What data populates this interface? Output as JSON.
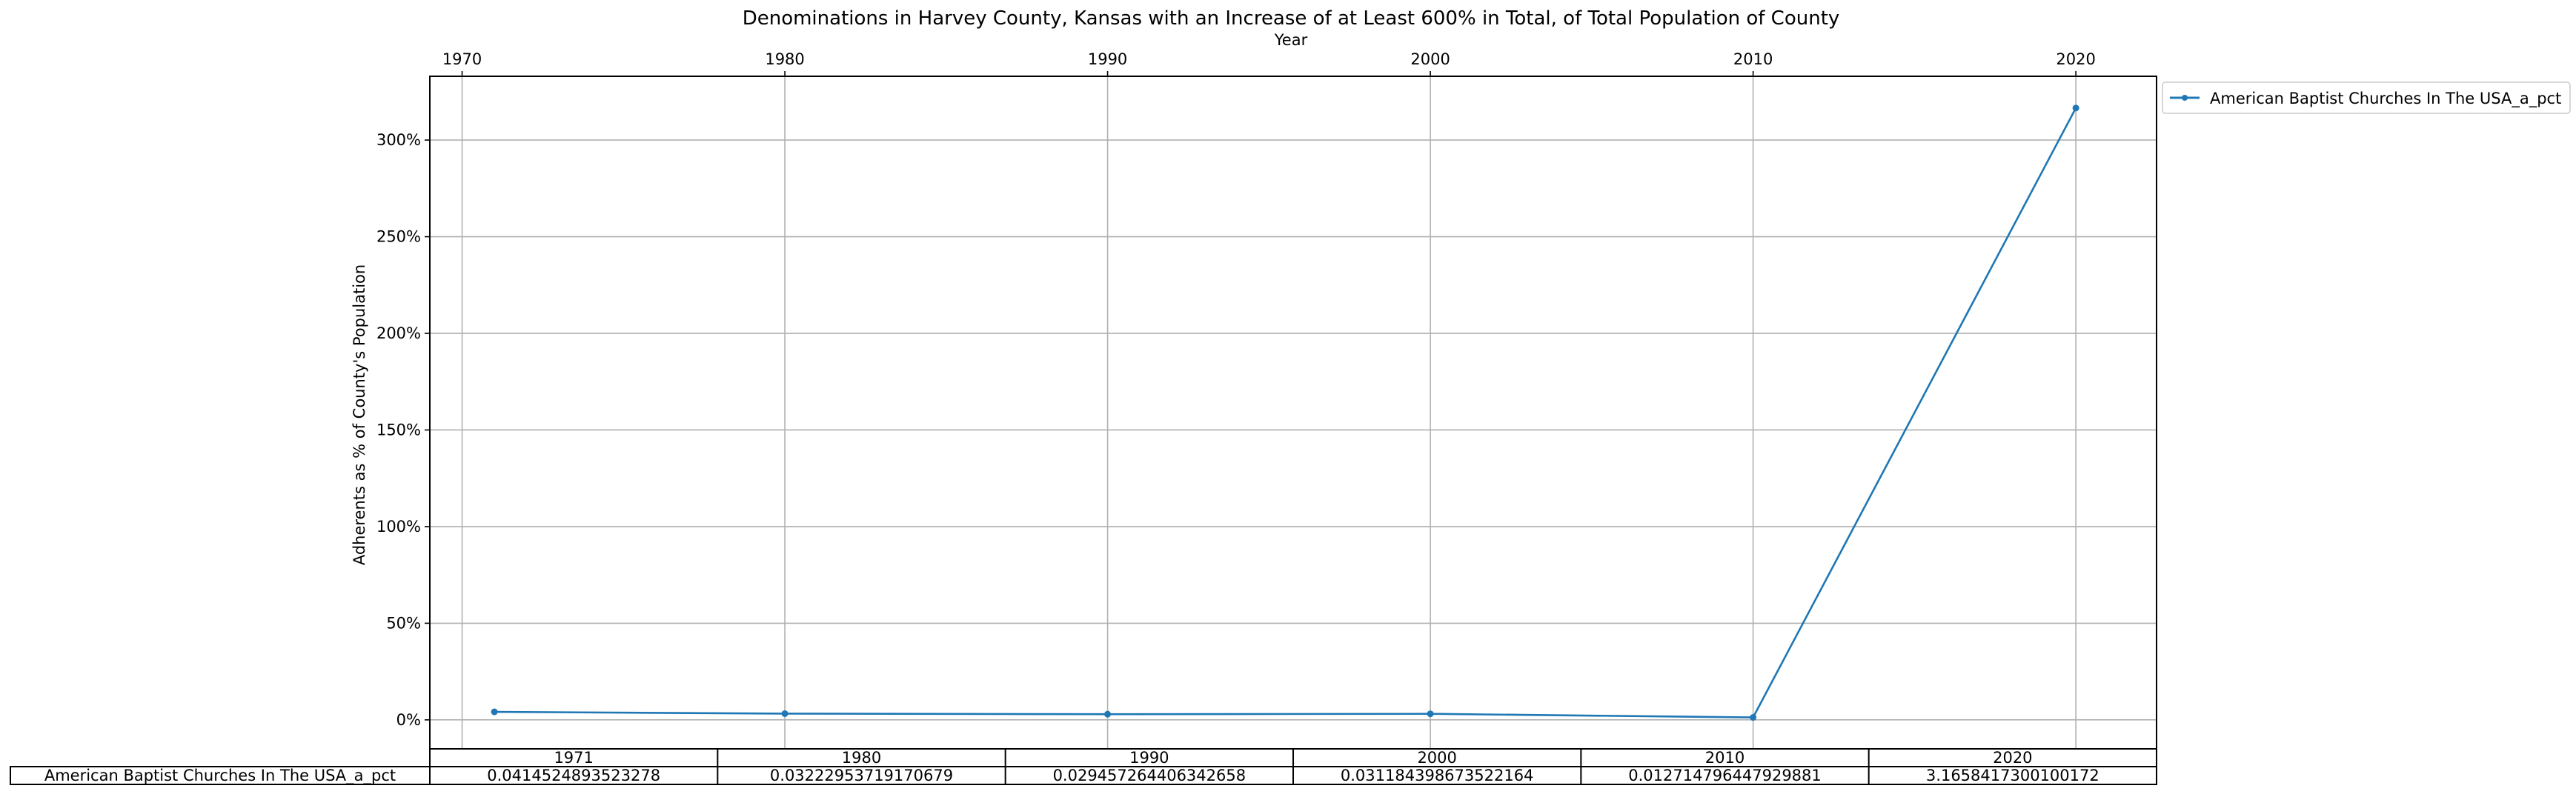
{
  "chart_data": {
    "type": "line",
    "title": "Denominations in Harvey County, Kansas with an Increase of at Least 600% in Total, of Total Population of County",
    "xlabel": "Year",
    "ylabel": "Adherents as % of County's Population",
    "x_ticks": [
      "1970",
      "1980",
      "1990",
      "2000",
      "2010",
      "2020"
    ],
    "xlim": [
      1969,
      2022.5
    ],
    "y_ticks": [
      "0%",
      "50%",
      "100%",
      "150%",
      "200%",
      "250%",
      "300%"
    ],
    "y_tick_values": [
      0,
      0.5,
      1.0,
      1.5,
      2.0,
      2.5,
      3.0
    ],
    "ylim": [
      -0.15,
      3.33
    ],
    "grid": true,
    "legend_position": "outside upper right",
    "x": [
      1971,
      1980,
      1990,
      2000,
      2010,
      2020
    ],
    "series": [
      {
        "name": "American Baptist Churches In The USA_a_pct",
        "color": "#1f77b4",
        "values": [
          0.0414524893523278,
          0.03222953719170679,
          0.029457264406342658,
          0.031184398673522164,
          0.012714796447929881,
          3.1658417300100172
        ]
      }
    ],
    "table": {
      "columns": [
        "1971",
        "1980",
        "1990",
        "2000",
        "2010",
        "2020"
      ],
      "row_label": "American Baptist Churches In The USA_a_pct",
      "cells": [
        "0.0414524893523278",
        "0.03222953719170679",
        "0.029457264406342658",
        "0.031184398673522164",
        "0.012714796447929881",
        "3.1658417300100172"
      ]
    }
  }
}
